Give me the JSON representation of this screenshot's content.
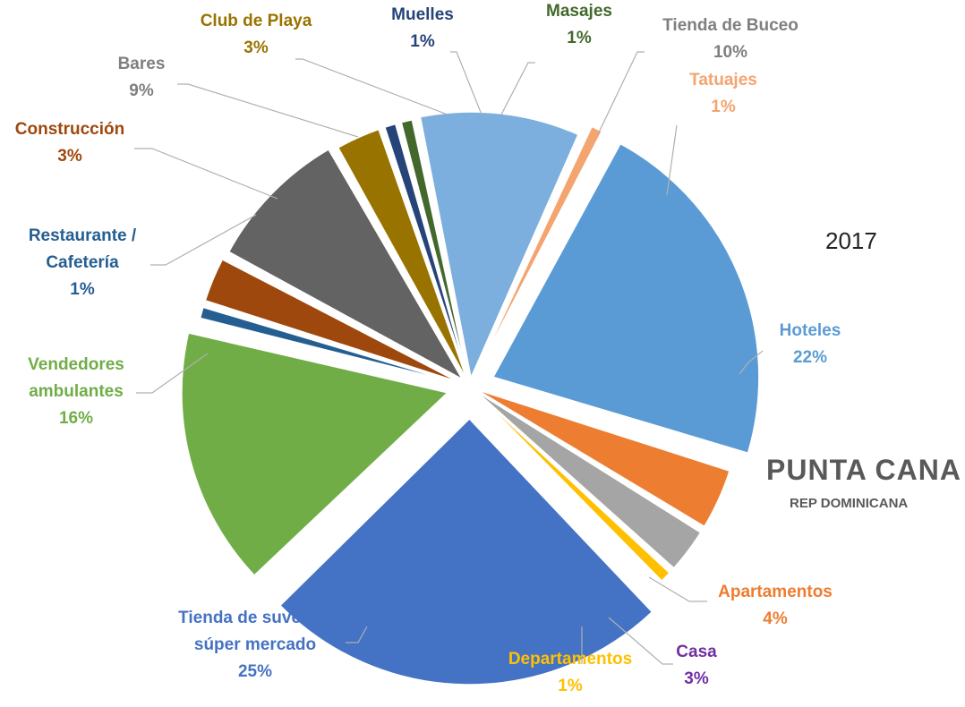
{
  "annotations": {
    "year": "2017",
    "place": "PUNTA CANA",
    "subplace": "REP DOMINICANA"
  },
  "chart_data": {
    "type": "pie",
    "title": "",
    "legend": "none",
    "data_labels": "outside-with-leader-lines",
    "slices": [
      {
        "label": "Hoteles",
        "value": 22,
        "text": "22%",
        "label_lines": [
          "Hoteles",
          "22%"
        ],
        "color": "#5B9BD5",
        "label_color": "#5B9BD5"
      },
      {
        "label": "Apartamentos",
        "value": 4,
        "text": "4%",
        "label_lines": [
          "Apartamentos",
          "4%"
        ],
        "color": "#ED7D31",
        "label_color": "#ED7D31"
      },
      {
        "label": "Casa",
        "value": 3,
        "text": "3%",
        "label_lines": [
          "Casa",
          "3%"
        ],
        "color": "#A5A5A5",
        "label_color": "#7030A0"
      },
      {
        "label": "Departamentos",
        "value": 1,
        "text": "1%",
        "label_lines": [
          "Departamentos",
          "1%"
        ],
        "color": "#FFC000",
        "label_color": "#FFC000"
      },
      {
        "label": "Tienda de suvenirs súper mercado",
        "value": 25,
        "text": "25%",
        "label_lines": [
          "Tienda de suvenirs",
          "súper mercado",
          "25%"
        ],
        "color": "#4472C4",
        "label_color": "#4472C4"
      },
      {
        "label": "Vendedores ambulantes",
        "value": 16,
        "text": "16%",
        "label_lines": [
          "Vendedores",
          "ambulantes",
          "16%"
        ],
        "color": "#70AD47",
        "label_color": "#70AD47"
      },
      {
        "label": "Restaurante / Cafetería",
        "value": 1,
        "text": "1%",
        "label_lines": [
          "Restaurante /",
          "Cafetería",
          "1%"
        ],
        "color": "#255E91",
        "label_color": "#255E91"
      },
      {
        "label": "Construcción",
        "value": 3,
        "text": "3%",
        "label_lines": [
          "Construcción",
          "3%"
        ],
        "color": "#9E480E",
        "label_color": "#9E480E"
      },
      {
        "label": "Bares",
        "value": 9,
        "text": "9%",
        "label_lines": [
          "Bares",
          "9%"
        ],
        "color": "#636363",
        "label_color": "#7F7F7F"
      },
      {
        "label": "Club de Playa",
        "value": 3,
        "text": "3%",
        "label_lines": [
          "Club de Playa",
          "3%"
        ],
        "color": "#997300",
        "label_color": "#997300"
      },
      {
        "label": "Muelles",
        "value": 1,
        "text": "1%",
        "label_lines": [
          "Muelles",
          "1%"
        ],
        "color": "#264478",
        "label_color": "#264478"
      },
      {
        "label": "Masajes",
        "value": 1,
        "text": "1%",
        "label_lines": [
          "Masajes",
          "1%"
        ],
        "color": "#43682B",
        "label_color": "#43682B"
      },
      {
        "label": "Tienda de Buceo",
        "value": 10,
        "text": "10%",
        "label_lines": [
          "Tienda de Buceo",
          "10%"
        ],
        "color": "#7CAFDD",
        "label_color": "#7F7F7F"
      },
      {
        "label": "Tatuajes",
        "value": 1,
        "text": "1%",
        "label_lines": [
          "Tatuajes",
          "1%"
        ],
        "color": "#F4A46F",
        "label_color": "#F4A46F"
      }
    ]
  }
}
